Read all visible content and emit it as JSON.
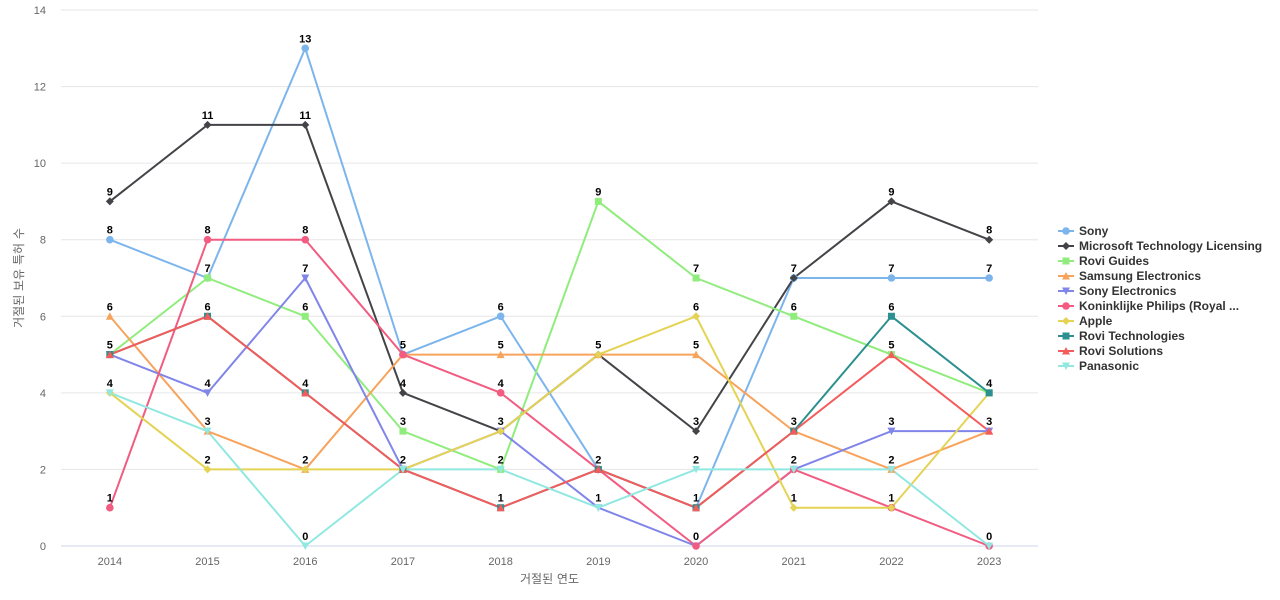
{
  "chart_data": {
    "type": "line",
    "xlabel": "거절된 연도",
    "ylabel": "거절된 보유 특허 수",
    "ylim": [
      0,
      14
    ],
    "yticks": [
      0,
      2,
      4,
      6,
      8,
      10,
      12,
      14
    ],
    "grid": true,
    "legend_position": "right",
    "categories": [
      "2014",
      "2015",
      "2016",
      "2017",
      "2018",
      "2019",
      "2020",
      "2021",
      "2022",
      "2023"
    ],
    "series": [
      {
        "name": "Sony",
        "color": "#7cb5ec",
        "marker": "circle",
        "values": [
          8,
          7,
          13,
          5,
          6,
          2,
          1,
          7,
          7,
          7
        ]
      },
      {
        "name": "Microsoft Technology Licensing",
        "color": "#434348",
        "marker": "diamond",
        "values": [
          9,
          11,
          11,
          4,
          3,
          5,
          3,
          7,
          9,
          8
        ]
      },
      {
        "name": "Rovi Guides",
        "color": "#90ed7d",
        "marker": "square",
        "values": [
          5,
          7,
          6,
          3,
          2,
          9,
          7,
          6,
          5,
          4
        ]
      },
      {
        "name": "Samsung Electronics",
        "color": "#f7a35c",
        "marker": "triangle",
        "values": [
          6,
          3,
          2,
          5,
          5,
          5,
          5,
          3,
          2,
          3
        ]
      },
      {
        "name": "Sony Electronics",
        "color": "#8085e9",
        "marker": "triangle-down",
        "values": [
          5,
          4,
          7,
          2,
          3,
          1,
          0,
          2,
          3,
          3
        ]
      },
      {
        "name": "Koninklijke Philips (Royal ...",
        "color": "#f15c80",
        "marker": "circle",
        "values": [
          1,
          8,
          8,
          5,
          4,
          2,
          0,
          2,
          1,
          0
        ]
      },
      {
        "name": "Apple",
        "color": "#e4d354",
        "marker": "diamond",
        "values": [
          4,
          2,
          2,
          2,
          3,
          5,
          6,
          1,
          1,
          4
        ]
      },
      {
        "name": "Rovi Technologies",
        "color": "#2b908f",
        "marker": "square",
        "values": [
          5,
          6,
          4,
          2,
          1,
          2,
          1,
          3,
          6,
          4
        ]
      },
      {
        "name": "Rovi Solutions",
        "color": "#f45b5b",
        "marker": "triangle",
        "values": [
          5,
          6,
          4,
          2,
          1,
          2,
          1,
          3,
          5,
          3
        ]
      },
      {
        "name": "Panasonic",
        "color": "#91e8e1",
        "marker": "triangle-down",
        "values": [
          4,
          3,
          0,
          2,
          2,
          1,
          2,
          2,
          2,
          0
        ]
      }
    ],
    "data_labels": [
      {
        "x": "2014",
        "value": 9
      },
      {
        "x": "2014",
        "value": 8
      },
      {
        "x": "2014",
        "value": 6
      },
      {
        "x": "2014",
        "value": 5
      },
      {
        "x": "2014",
        "value": 4
      },
      {
        "x": "2014",
        "value": 1
      },
      {
        "x": "2015",
        "value": 11
      },
      {
        "x": "2015",
        "value": 8
      },
      {
        "x": "2015",
        "value": 7
      },
      {
        "x": "2015",
        "value": 6
      },
      {
        "x": "2015",
        "value": 4
      },
      {
        "x": "2015",
        "value": 3
      },
      {
        "x": "2015",
        "value": 2
      },
      {
        "x": "2016",
        "value": 13
      },
      {
        "x": "2016",
        "value": 11
      },
      {
        "x": "2016",
        "value": 8
      },
      {
        "x": "2016",
        "value": 7
      },
      {
        "x": "2016",
        "value": 6
      },
      {
        "x": "2016",
        "value": 4
      },
      {
        "x": "2016",
        "value": 2
      },
      {
        "x": "2016",
        "value": 0
      },
      {
        "x": "2017",
        "value": 5
      },
      {
        "x": "2017",
        "value": 4
      },
      {
        "x": "2017",
        "value": 3
      },
      {
        "x": "2017",
        "value": 2
      },
      {
        "x": "2018",
        "value": 6
      },
      {
        "x": "2018",
        "value": 5
      },
      {
        "x": "2018",
        "value": 4
      },
      {
        "x": "2018",
        "value": 3
      },
      {
        "x": "2018",
        "value": 2
      },
      {
        "x": "2018",
        "value": 1
      },
      {
        "x": "2019",
        "value": 9
      },
      {
        "x": "2019",
        "value": 5
      },
      {
        "x": "2019",
        "value": 2
      },
      {
        "x": "2019",
        "value": 1
      },
      {
        "x": "2020",
        "value": 7
      },
      {
        "x": "2020",
        "value": 6
      },
      {
        "x": "2020",
        "value": 5
      },
      {
        "x": "2020",
        "value": 3
      },
      {
        "x": "2020",
        "value": 2
      },
      {
        "x": "2020",
        "value": 1
      },
      {
        "x": "2020",
        "value": 0
      },
      {
        "x": "2021",
        "value": 7
      },
      {
        "x": "2021",
        "value": 6
      },
      {
        "x": "2021",
        "value": 3
      },
      {
        "x": "2021",
        "value": 2
      },
      {
        "x": "2021",
        "value": 1
      },
      {
        "x": "2022",
        "value": 9
      },
      {
        "x": "2022",
        "value": 7
      },
      {
        "x": "2022",
        "value": 6
      },
      {
        "x": "2022",
        "value": 5
      },
      {
        "x": "2022",
        "value": 3
      },
      {
        "x": "2022",
        "value": 2
      },
      {
        "x": "2022",
        "value": 1
      },
      {
        "x": "2023",
        "value": 8
      },
      {
        "x": "2023",
        "value": 7
      },
      {
        "x": "2023",
        "value": 4
      },
      {
        "x": "2023",
        "value": 3
      },
      {
        "x": "2023",
        "value": 0
      }
    ]
  }
}
